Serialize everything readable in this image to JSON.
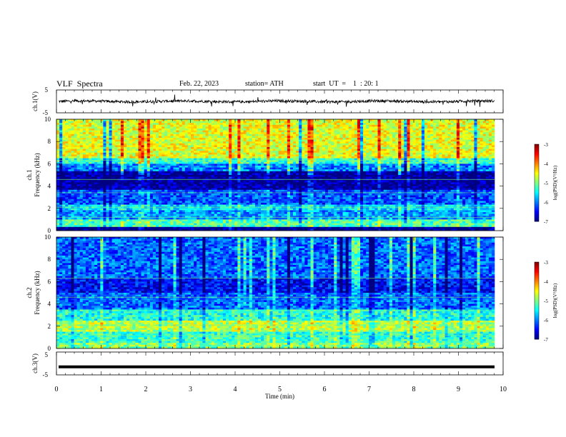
{
  "header": {
    "title": "VLF  Spectra",
    "date": "Feb. 22, 2023",
    "station": "station= ATH",
    "start": "start  UT  =    1  : 20: 1"
  },
  "chart_data": [
    {
      "type": "line",
      "panel": "ch1",
      "ylabel": "ch.1(V)",
      "yticks": [
        "5",
        "-5"
      ],
      "ylim": [
        -5,
        5
      ],
      "xlim": [
        0,
        10
      ],
      "description_values": {
        "mean": 0,
        "noise_amplitude": 0.6
      }
    },
    {
      "type": "heatmap",
      "panel": "ch1-spectrogram",
      "ylabel": "ch.1\nFrequency (kHz)",
      "yticks": [
        "0",
        "2",
        "4",
        "6",
        "8",
        "10"
      ],
      "ylim": [
        0,
        10
      ],
      "xlim": [
        0,
        9.8
      ],
      "colorbar": {
        "label": "log(PSD)(V²/Hz)",
        "ticks": [
          "-3",
          "-4",
          "-5",
          "-6",
          "-7"
        ],
        "range": [
          -7,
          -3
        ]
      },
      "bands": [
        {
          "from": 6.5,
          "to": 10,
          "level": -4.6
        },
        {
          "from": 6.0,
          "to": 6.5,
          "level": -5.3
        },
        {
          "from": 5.3,
          "to": 6.0,
          "level": -6.0
        },
        {
          "from": 3.6,
          "to": 5.3,
          "level": -6.9
        },
        {
          "from": 2.4,
          "to": 3.6,
          "level": -6.2
        },
        {
          "from": 1.9,
          "to": 2.4,
          "level": -5.6
        },
        {
          "from": 1.0,
          "to": 1.9,
          "level": -5.9
        },
        {
          "from": 0.4,
          "to": 1.0,
          "level": -5.2
        },
        {
          "from": 0.0,
          "to": 0.4,
          "level": -7.0
        }
      ]
    },
    {
      "type": "heatmap",
      "panel": "ch2-spectrogram",
      "ylabel": "ch.2\nFrequency (kHz)",
      "yticks": [
        "0",
        "2",
        "4",
        "6",
        "8",
        "10"
      ],
      "ylim": [
        0,
        10
      ],
      "xlim": [
        0,
        9.8
      ],
      "colorbar": {
        "label": "log(PSD)(V²/Hz)",
        "ticks": [
          "-3",
          "-4",
          "-5",
          "-6",
          "-7"
        ],
        "range": [
          -7,
          -3
        ]
      },
      "bands": [
        {
          "from": 6.3,
          "to": 10,
          "level": -6.1
        },
        {
          "from": 5.0,
          "to": 6.3,
          "level": -6.5
        },
        {
          "from": 3.5,
          "to": 5.0,
          "level": -6.1
        },
        {
          "from": 2.5,
          "to": 3.5,
          "level": -5.4
        },
        {
          "from": 1.5,
          "to": 2.5,
          "level": -4.8
        },
        {
          "from": 0.5,
          "to": 1.5,
          "level": -5.3
        },
        {
          "from": 0.0,
          "to": 0.5,
          "level": -5.0
        }
      ]
    },
    {
      "type": "line",
      "panel": "ch3",
      "ylabel": "ch.3(V)",
      "yticks": [
        "5",
        "-5"
      ],
      "ylim": [
        -5,
        5
      ],
      "xlim": [
        0,
        10
      ],
      "constant_value": -1.5,
      "xlabel": "Time  (min)",
      "xticks": [
        "0",
        "1",
        "2",
        "3",
        "4",
        "5",
        "6",
        "7",
        "8",
        "9",
        "10"
      ]
    }
  ]
}
